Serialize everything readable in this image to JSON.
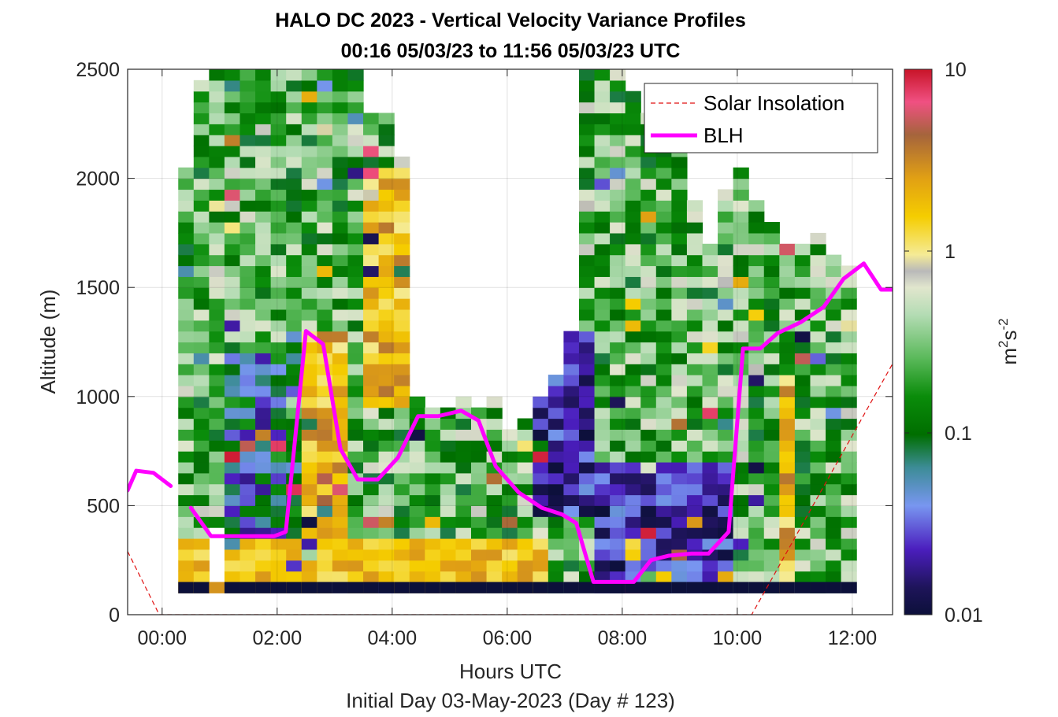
{
  "chart_data": {
    "type": "heatmap",
    "title": "HALO DC 2023 - Vertical Velocity Variance Profiles",
    "subtitle": "00:16 05/03/23 to 11:56 05/03/23  UTC",
    "xlabel": "Hours UTC",
    "xlabel2": "Initial Day 03-May-2023 (Day # 123)",
    "ylabel": "Altitude (m)",
    "xlim": [
      -0.6,
      12.7
    ],
    "ylim": [
      0,
      2500
    ],
    "x_ticks": [
      0,
      2,
      4,
      6,
      8,
      10,
      12
    ],
    "x_tick_labels": [
      "00:00",
      "02:00",
      "04:00",
      "06:00",
      "08:00",
      "10:00",
      "12:00"
    ],
    "y_ticks": [
      0,
      500,
      1000,
      1500,
      2000,
      2500
    ],
    "y_tick_labels": [
      "0",
      "500",
      "1000",
      "1500",
      "2000",
      "2500"
    ],
    "grid": true,
    "legend_position": "top-right",
    "colorbar": {
      "label": "m²s⁻²",
      "scale": "log",
      "range": [
        0.01,
        10
      ],
      "ticks": [
        0.01,
        0.1,
        1,
        10
      ],
      "tick_labels": [
        "0.01",
        "0.1",
        "1",
        "10"
      ]
    },
    "series": [
      {
        "name": "Solar Insolation",
        "style": "dashed",
        "color": "#e01010",
        "x": [
          -0.6,
          -0.05,
          10.25,
          12.7
        ],
        "y": [
          290,
          0,
          0,
          1150
        ]
      },
      {
        "name": "BLH",
        "style": "solid",
        "color": "#ff00ff",
        "segments": [
          {
            "x": [
              -0.6,
              -0.45,
              -0.15,
              0.15
            ],
            "y": [
              570,
              660,
              650,
              590
            ]
          },
          {
            "x": [
              0.5,
              0.85,
              1.5,
              1.95,
              2.15,
              2.5,
              2.8,
              3.1,
              3.4,
              3.75,
              4.1,
              4.45,
              4.8,
              5.2,
              5.5,
              5.8,
              6.2,
              6.6,
              6.95,
              7.2,
              7.5,
              7.8,
              8.2,
              8.5,
              8.8,
              9.2,
              9.5,
              9.85,
              10.1,
              10.4,
              10.7,
              11.1,
              11.5,
              11.85,
              12.2,
              12.5,
              12.7
            ],
            "y": [
              490,
              360,
              360,
              360,
              380,
              1300,
              1240,
              760,
              620,
              620,
              720,
              910,
              910,
              935,
              890,
              680,
              560,
              490,
              460,
              420,
              150,
              150,
              150,
              250,
              270,
              280,
              280,
              380,
              1220,
              1220,
              1290,
              1340,
              1410,
              1540,
              1610,
              1490,
              1490
            ]
          }
        ]
      }
    ],
    "heatmap": {
      "x_start": 0.28,
      "x_step": 0.333,
      "columns": 26,
      "y_start": 100,
      "y_step": 50,
      "rows": 48,
      "values_description_only_in_script": true
    }
  }
}
